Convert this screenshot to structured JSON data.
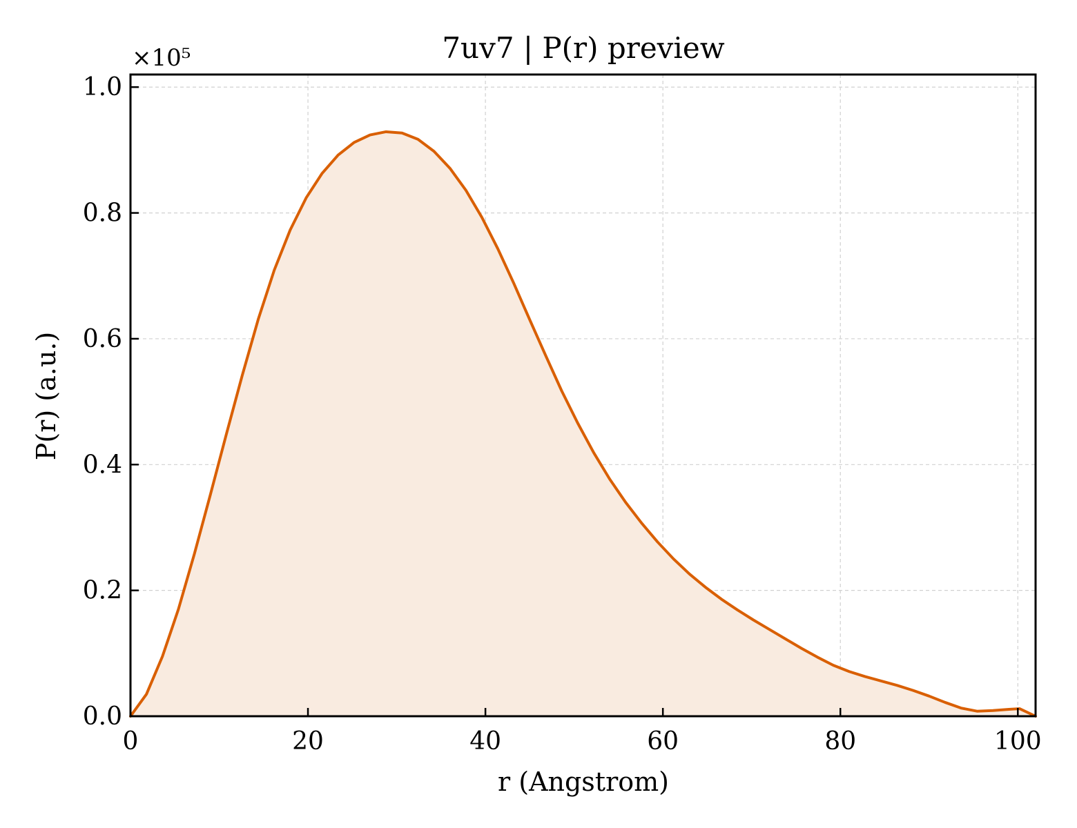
{
  "chart_data": {
    "type": "area",
    "title": "7uv7 | P(r) preview",
    "xlabel": "r (Angstrom)",
    "ylabel": "P(r) (a.u.)",
    "offset_text": "×10⁵",
    "scale_factor": 100000,
    "xlim": [
      0,
      102
    ],
    "ylim": [
      0,
      1.02
    ],
    "x_ticks": [
      0,
      20,
      40,
      60,
      80,
      100
    ],
    "x_tick_labels": [
      "0",
      "20",
      "40",
      "60",
      "80",
      "100"
    ],
    "y_ticks": [
      0.0,
      0.2,
      0.4,
      0.6,
      0.8,
      1.0
    ],
    "y_tick_labels": [
      "0.0",
      "0.2",
      "0.4",
      "0.6",
      "0.8",
      "1.0"
    ],
    "grid": true,
    "colors": {
      "line": "#d95f02",
      "fill": "#f9ebe0",
      "grid": "#d0d0d0"
    },
    "series": [
      {
        "x": [
          0,
          1.8,
          3.6,
          5.4,
          7.2,
          9.0,
          10.8,
          12.6,
          14.4,
          16.2,
          18.0,
          19.8,
          21.6,
          23.4,
          25.2,
          27.0,
          28.8,
          30.6,
          32.4,
          34.2,
          36.0,
          37.8,
          39.6,
          41.4,
          43.2,
          45.0,
          46.8,
          48.6,
          50.4,
          52.2,
          54.0,
          55.8,
          57.6,
          59.4,
          61.2,
          63.0,
          64.8,
          66.6,
          68.4,
          70.2,
          72.0,
          73.8,
          75.6,
          77.4,
          79.2,
          81.0,
          82.8,
          84.6,
          86.4,
          88.2,
          90.0,
          91.8,
          93.6,
          95.4,
          97.2,
          99.0,
          100.2,
          102.0
        ],
        "y": [
          0.0,
          0.035,
          0.095,
          0.17,
          0.258,
          0.352,
          0.448,
          0.542,
          0.631,
          0.709,
          0.773,
          0.824,
          0.863,
          0.892,
          0.912,
          0.924,
          0.929,
          0.927,
          0.917,
          0.898,
          0.871,
          0.836,
          0.793,
          0.743,
          0.688,
          0.63,
          0.573,
          0.517,
          0.466,
          0.419,
          0.377,
          0.34,
          0.307,
          0.277,
          0.25,
          0.226,
          0.205,
          0.186,
          0.169,
          0.153,
          0.138,
          0.123,
          0.108,
          0.094,
          0.081,
          0.071,
          0.063,
          0.056,
          0.049,
          0.041,
          0.032,
          0.022,
          0.013,
          0.008,
          0.009,
          0.011,
          0.012,
          0.0
        ]
      }
    ]
  }
}
